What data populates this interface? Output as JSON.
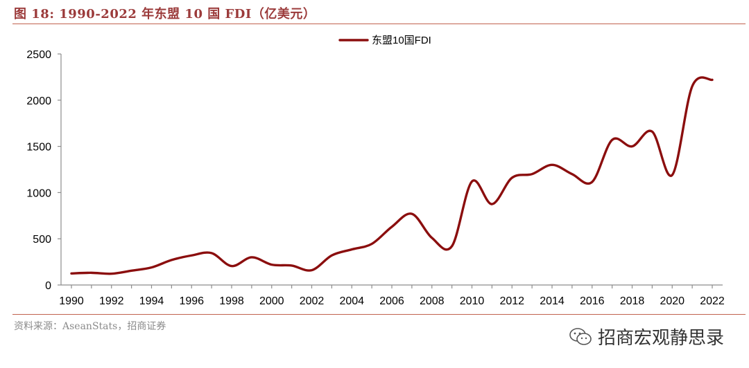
{
  "figure": {
    "title": "图 18:  1990-2022 年东盟 10 国 FDI（亿美元）",
    "source": "资料来源：AseanStats，招商证券",
    "watermark": "招商宏观静思录",
    "watermark_icon": "wechat-icon"
  },
  "colors": {
    "line": "#8b0e0e",
    "accent": "#c0614e",
    "title": "#9b3a3a"
  },
  "chart_data": {
    "type": "line",
    "title": "",
    "xlabel": "",
    "ylabel": "",
    "legend": {
      "label": "东盟10国FDI",
      "position": "top-center"
    },
    "x": [
      1990,
      1991,
      1992,
      1993,
      1994,
      1995,
      1996,
      1997,
      1998,
      1999,
      2000,
      2001,
      2002,
      2003,
      2004,
      2005,
      2006,
      2007,
      2008,
      2009,
      2010,
      2011,
      2012,
      2013,
      2014,
      2015,
      2016,
      2017,
      2018,
      2019,
      2020,
      2021,
      2022
    ],
    "series": [
      {
        "name": "东盟10国FDI",
        "values": [
          125,
          132,
          122,
          155,
          190,
          270,
          320,
          345,
          205,
          300,
          220,
          210,
          160,
          320,
          385,
          445,
          630,
          770,
          510,
          420,
          1120,
          875,
          1160,
          1200,
          1300,
          1200,
          1115,
          1570,
          1500,
          1660,
          1190,
          2150,
          2220
        ]
      }
    ],
    "ylim": [
      0,
      2500
    ],
    "yticks": [
      0,
      500,
      1000,
      1500,
      2000,
      2500
    ],
    "xticks": [
      1990,
      1992,
      1994,
      1996,
      1998,
      2000,
      2002,
      2004,
      2006,
      2008,
      2010,
      2012,
      2014,
      2016,
      2018,
      2020,
      2022
    ],
    "grid": false
  }
}
